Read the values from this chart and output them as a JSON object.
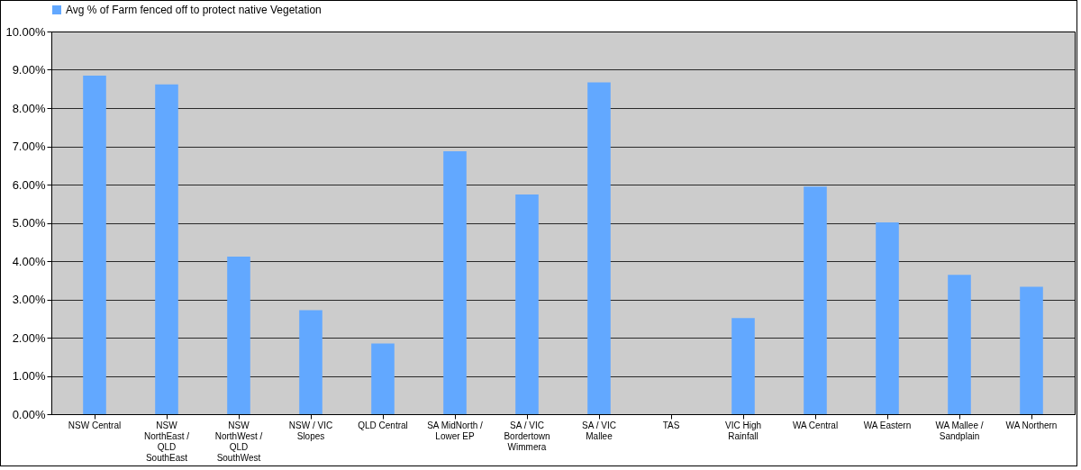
{
  "chart_data": {
    "type": "bar",
    "categories": [
      "NSW Central",
      "NSW NorthEast / QLD SouthEast",
      "NSW NorthWest / QLD SouthWest",
      "NSW / VIC Slopes",
      "QLD Central",
      "SA MidNorth / Lower EP",
      "SA / VIC Bordertown Wimmera",
      "SA / VIC Mallee",
      "TAS",
      "VIC High Rainfall",
      "WA Central",
      "WA Eastern",
      "WA Mallee / Sandplain",
      "WA Northern"
    ],
    "series": [
      {
        "name": "Avg % of Farm fenced off to protect native Vegetation",
        "color": "#62a8ff",
        "values": [
          8.85,
          8.62,
          4.12,
          2.72,
          1.85,
          6.87,
          5.74,
          8.67,
          null,
          2.51,
          5.95,
          5.01,
          3.64,
          3.33
        ]
      }
    ],
    "ylim": [
      0,
      10
    ],
    "yticks": [
      {
        "value": 0,
        "label": "0.00%"
      },
      {
        "value": 1,
        "label": "1.00%"
      },
      {
        "value": 2,
        "label": "2.00%"
      },
      {
        "value": 3,
        "label": "3.00%"
      },
      {
        "value": 4,
        "label": "4.00%"
      },
      {
        "value": 5,
        "label": "5.00%"
      },
      {
        "value": 6,
        "label": "6.00%"
      },
      {
        "value": 7,
        "label": "7.00%"
      },
      {
        "value": 8,
        "label": "8.00%"
      },
      {
        "value": 9,
        "label": "9.00%"
      },
      {
        "value": 10,
        "label": "10.00%"
      }
    ],
    "grid": "y",
    "legend": "top"
  }
}
